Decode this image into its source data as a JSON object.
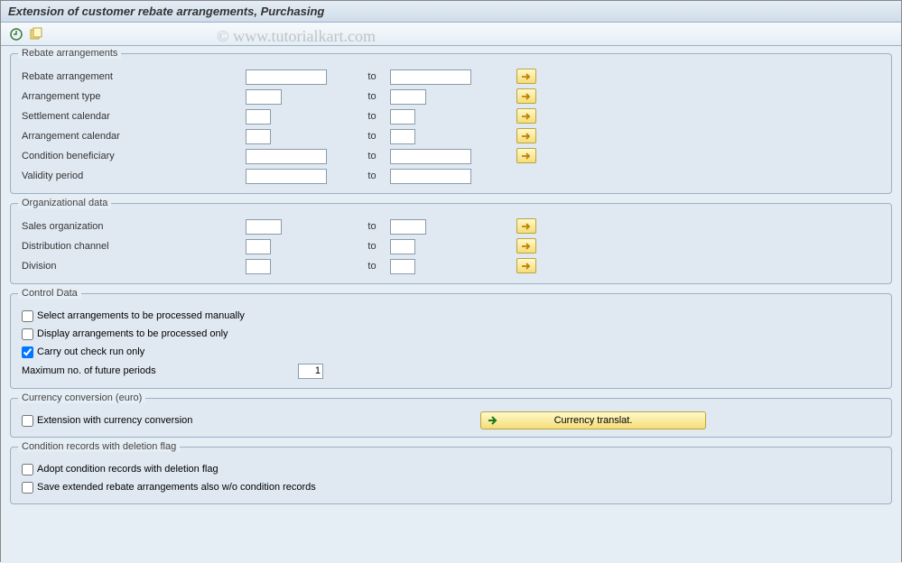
{
  "title": "Extension of customer rebate arrangements, Purchasing",
  "watermark": "© www.tutorialkart.com",
  "toolbar": {
    "execute": "Execute",
    "variant": "Get Variant"
  },
  "labels": {
    "to": "to"
  },
  "group1": {
    "title": "Rebate arrangements",
    "rows": [
      {
        "label": "Rebate arrangement",
        "from": "",
        "toVal": "",
        "inW": "w90",
        "ms": true
      },
      {
        "label": "Arrangement type",
        "from": "",
        "toVal": "",
        "inW": "w40",
        "ms": true
      },
      {
        "label": "Settlement calendar",
        "from": "",
        "toVal": "",
        "inW": "w28",
        "ms": true
      },
      {
        "label": "Arrangement calendar",
        "from": "",
        "toVal": "",
        "inW": "w28",
        "ms": true
      },
      {
        "label": "Condition beneficiary",
        "from": "",
        "toVal": "",
        "inW": "w90",
        "ms": true
      },
      {
        "label": "Validity period",
        "from": "",
        "toVal": "",
        "inW": "w90",
        "ms": false
      }
    ]
  },
  "group2": {
    "title": "Organizational data",
    "rows": [
      {
        "label": "Sales organization",
        "from": "",
        "toVal": "",
        "inW": "w40",
        "ms": true
      },
      {
        "label": "Distribution channel",
        "from": "",
        "toVal": "",
        "inW": "w28",
        "ms": true
      },
      {
        "label": "Division",
        "from": "",
        "toVal": "",
        "inW": "w28",
        "ms": true
      }
    ]
  },
  "group3": {
    "title": "Control Data",
    "checks": [
      {
        "label": "Select arrangements to be processed manually",
        "checked": false
      },
      {
        "label": "Display arrangements to be processed only",
        "checked": false
      },
      {
        "label": "Carry out check run only",
        "checked": true
      }
    ],
    "num": {
      "label": "Maximum no. of future periods",
      "value": "1"
    }
  },
  "group4": {
    "title": "Currency conversion (euro)",
    "check": {
      "label": "Extension with currency conversion",
      "checked": false
    },
    "button": "Currency translat."
  },
  "group5": {
    "title": "Condition records with deletion flag",
    "checks": [
      {
        "label": "Adopt condition records with deletion flag",
        "checked": false
      },
      {
        "label": "Save extended rebate arrangements also w/o condition records",
        "checked": false
      }
    ]
  },
  "colors": {
    "yellow1": "#fef9cc",
    "yellow2": "#f5dd77",
    "border": "#9bb0c4",
    "bg": "#e6eef5"
  }
}
